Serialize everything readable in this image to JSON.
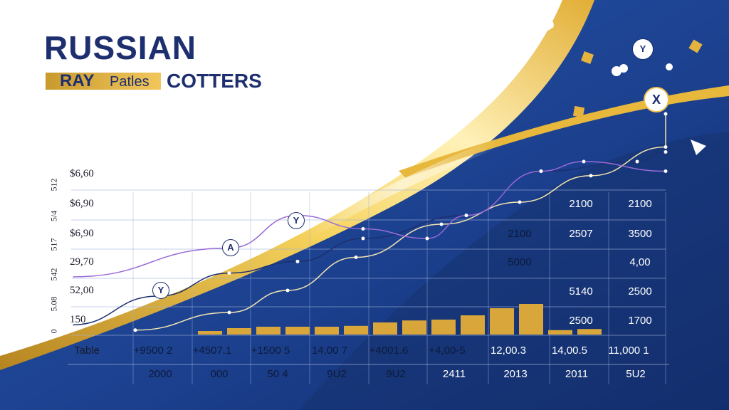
{
  "header": {
    "title": "RUSSIAN",
    "subtitle_left": "RAY",
    "subtitle_mid": "Patles",
    "subtitle_right": "COTTERS"
  },
  "colors": {
    "navy": "#1d3f8f",
    "deep_navy": "#142c6e",
    "gold": "#f0c14b",
    "bar_gold": "#d8a63a",
    "purple": "#9a6ad8",
    "title_navy": "#1d2f6f"
  },
  "chart_data": {
    "type": "line",
    "y_tick_labels": [
      "$6,60",
      "$6,90",
      "$6,90",
      "29,70",
      "52,00",
      "150"
    ],
    "y_tick_labels_vertical": [
      "512",
      "5/4",
      "517",
      "542",
      "5.08",
      "0"
    ],
    "x_labels": [
      "2000",
      "000",
      "50 4",
      "9U2",
      "9U2",
      "2411",
      "2013",
      "2011",
      "5U2"
    ],
    "table_row_label": "Table",
    "table_row_values": [
      "+9500 2",
      "+4507.1",
      "+1500 5",
      "14,00 7",
      "+4001.6",
      "+4,00-5",
      "12,00.3",
      "14,00.5",
      "11,000 1"
    ],
    "grid_values": [
      {
        "col": 7,
        "row": 0,
        "text": "2100"
      },
      {
        "col": 8,
        "row": 0,
        "text": "2100"
      },
      {
        "col": 6,
        "row": 1,
        "text": "2100"
      },
      {
        "col": 7,
        "row": 1,
        "text": "2507"
      },
      {
        "col": 8,
        "row": 1,
        "text": "3500"
      },
      {
        "col": 6,
        "row": 2,
        "text": "5000"
      },
      {
        "col": 8,
        "row": 2,
        "text": "4,00"
      },
      {
        "col": 7,
        "row": 3,
        "text": "5140"
      },
      {
        "col": 8,
        "row": 3,
        "text": "2500"
      },
      {
        "col": 7,
        "row": 4,
        "text": "2500"
      },
      {
        "col": 8,
        "row": 4,
        "text": "1700"
      }
    ],
    "markers": [
      "Y",
      "A",
      "Y",
      "Y",
      "X"
    ],
    "bar_values": [
      0.05,
      0.15,
      0.2,
      0.2,
      0.2,
      0.23,
      0.35,
      0.42,
      0.45,
      0.6,
      0.85,
      1.0,
      0.08,
      0.12
    ],
    "series": [
      {
        "values": [
          0.05,
          0.2,
          0.32,
          0.38,
          0.5,
          0.62,
          0.85,
          0.9,
          0.95
        ]
      },
      {
        "values": [
          0.02,
          0.1,
          0.2,
          0.35,
          0.5,
          0.6,
          0.72,
          0.85,
          1.0
        ]
      },
      {
        "values": [
          0.3,
          0.45,
          0.62,
          0.55,
          0.5,
          0.62,
          0.85,
          0.9,
          0.85
        ]
      }
    ],
    "grid": true
  }
}
